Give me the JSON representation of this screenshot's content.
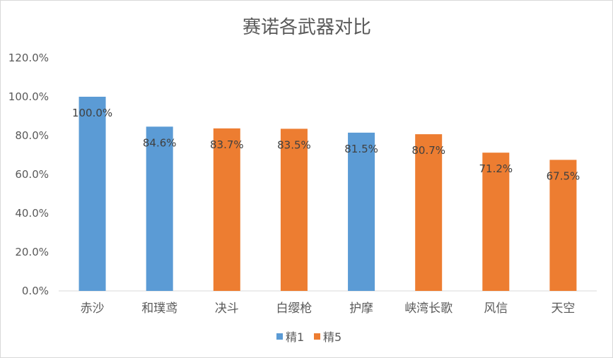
{
  "chart_data": {
    "type": "bar",
    "title": "赛诺各武器对比",
    "categories": [
      "赤沙",
      "和璞鸢",
      "决斗",
      "白缨枪",
      "护摩",
      "峡湾长歌",
      "风信",
      "天空"
    ],
    "values": [
      100.0,
      84.6,
      83.7,
      83.5,
      81.5,
      80.7,
      71.2,
      67.5
    ],
    "data_labels": [
      "100.0%",
      "84.6%",
      "83.7%",
      "83.5%",
      "81.5%",
      "80.7%",
      "71.2%",
      "67.5%"
    ],
    "bar_series": [
      "精1",
      "精1",
      "精5",
      "精5",
      "精1",
      "精5",
      "精5",
      "精5"
    ],
    "series": [
      {
        "name": "精1",
        "color": "#5b9bd5"
      },
      {
        "name": "精5",
        "color": "#ed7d31"
      }
    ],
    "yticks": [
      "0.0%",
      "20.0%",
      "40.0%",
      "60.0%",
      "80.0%",
      "100.0%",
      "120.0%"
    ],
    "ylim": [
      0,
      120
    ],
    "grid": false,
    "legend_position": "bottom"
  }
}
